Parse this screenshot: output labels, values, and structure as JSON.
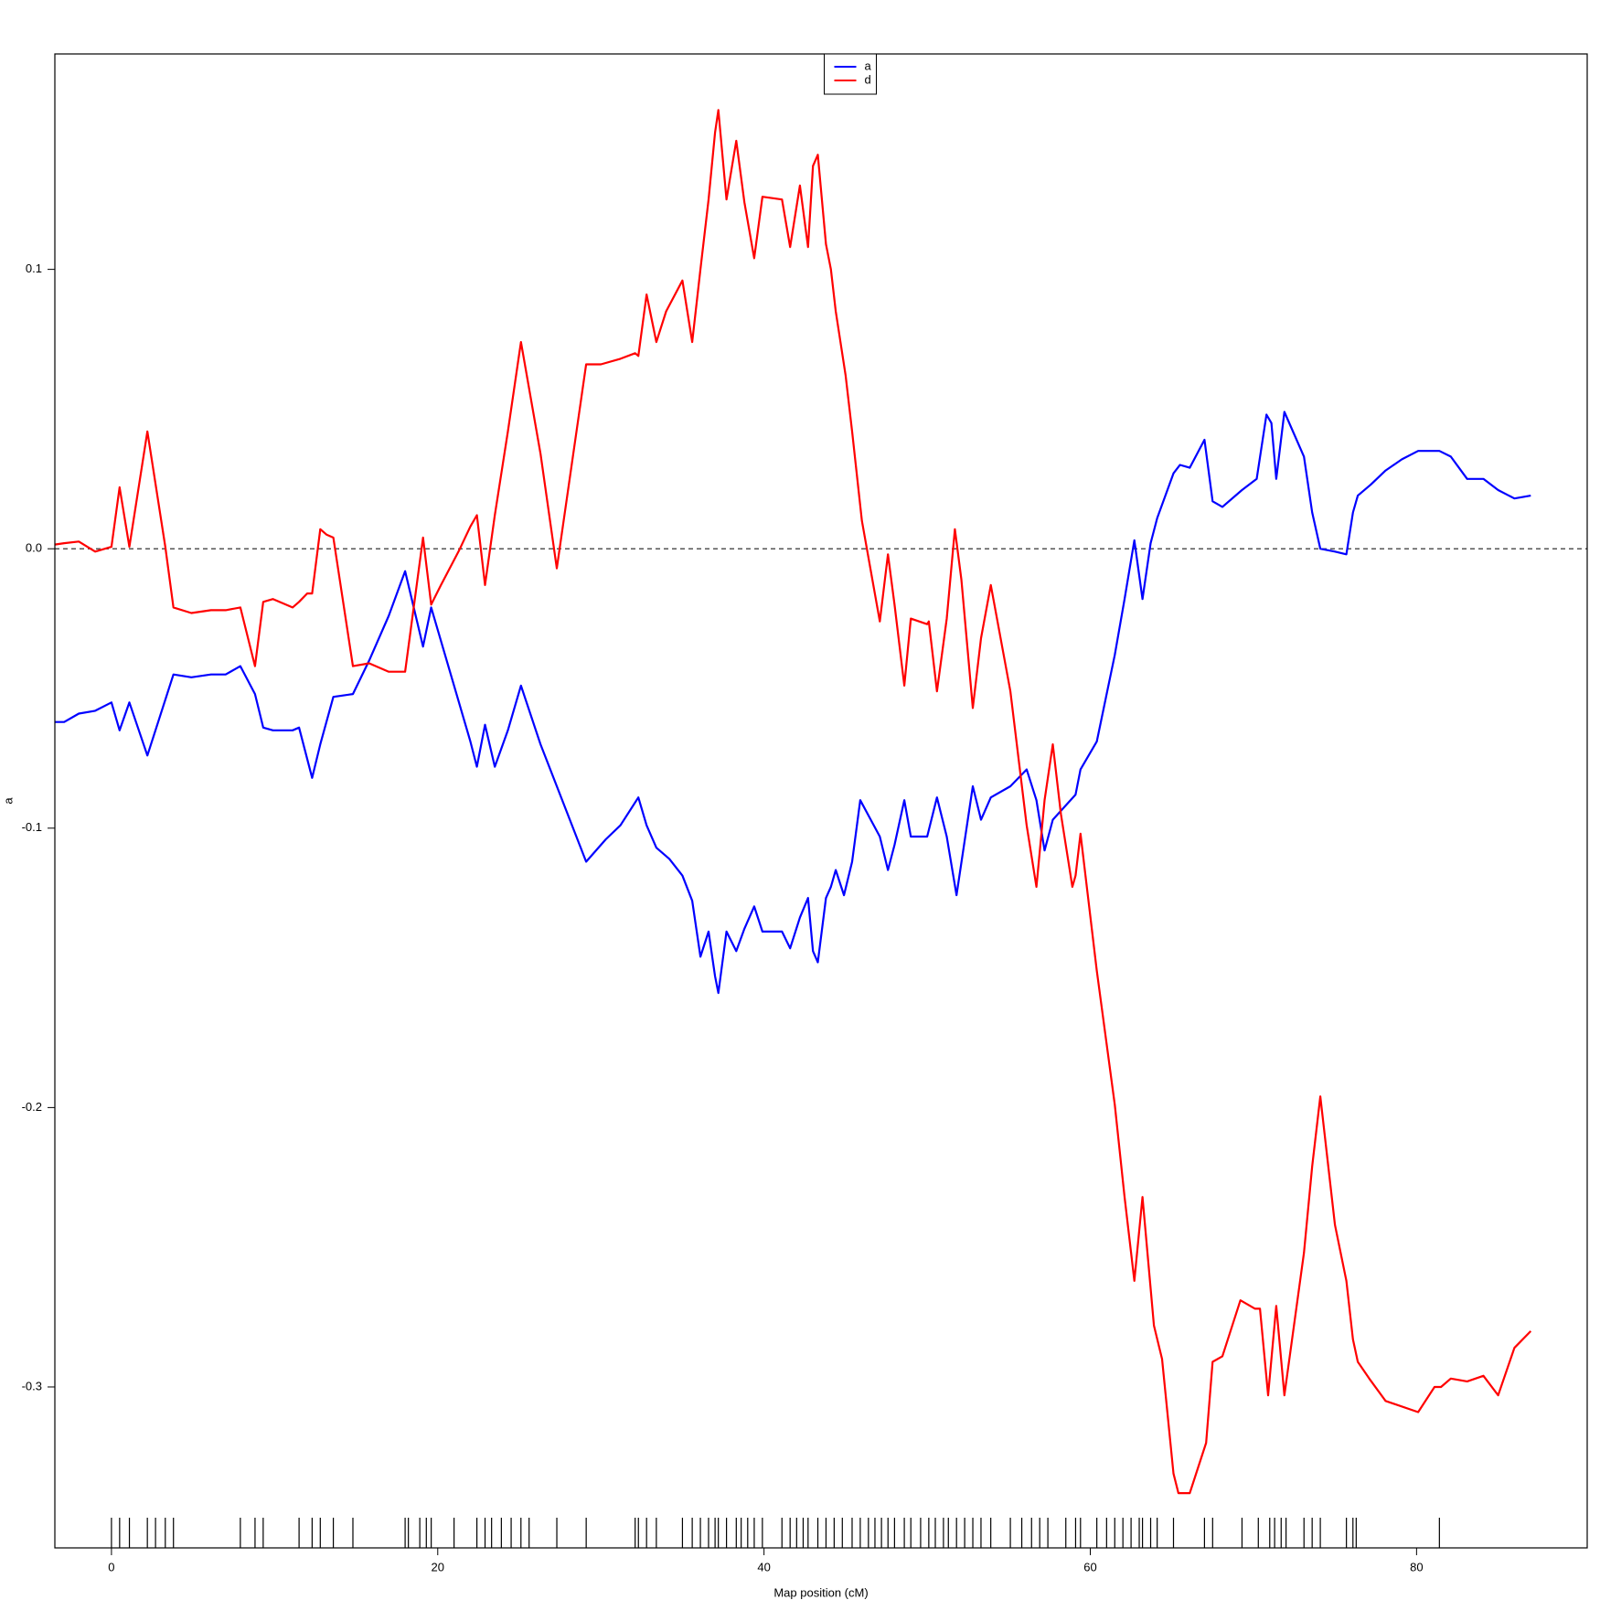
{
  "chart_data": {
    "type": "line",
    "x_label": "Map position (cM)",
    "y_label": "a",
    "xlim": [
      -3.47,
      90.46
    ],
    "ylim": [
      -0.3576,
      0.1771
    ],
    "xticks": [
      0,
      20,
      40,
      60,
      80
    ],
    "yticks": [
      -0.3,
      -0.2,
      -0.1,
      {
        "value": 0,
        "label": "0.0"
      },
      0.1
    ],
    "reference_line": 0,
    "legend": "top",
    "series": [
      {
        "name": "a",
        "color": "#0000ff",
        "x": [
          -3.47,
          -2.9,
          -2.0,
          -1.0,
          0,
          0.5,
          1.1,
          2.2,
          3.8,
          4.9,
          6.1,
          7.0,
          7.9,
          8.8,
          9.3,
          9.9,
          11.1,
          11.5,
          12.3,
          12.8,
          13.6,
          14.8,
          15.8,
          17.0,
          18.0,
          19.1,
          19.6,
          21.3,
          22.0,
          22.4,
          22.9,
          23.5,
          24.3,
          25.1,
          26.3,
          29.1,
          30.3,
          31.2,
          32.3,
          32.8,
          33.4,
          34.2,
          35.0,
          35.6,
          36.1,
          36.6,
          37.0,
          37.2,
          37.7,
          38.3,
          38.8,
          39.4,
          39.9,
          41.1,
          41.6,
          42.2,
          42.7,
          43.0,
          43.3,
          43.8,
          44.1,
          44.4,
          44.9,
          45.4,
          45.9,
          47.1,
          47.6,
          48.0,
          48.6,
          49.0,
          50.0,
          50.6,
          51.2,
          51.8,
          52.8,
          53.3,
          53.9,
          55.1,
          56.1,
          56.7,
          57.2,
          57.7,
          59.1,
          59.4,
          60.4,
          61.5,
          62.1,
          62.7,
          63.2,
          63.7,
          64.1,
          65.1,
          65.5,
          66.1,
          67.0,
          67.5,
          68.1,
          69.3,
          70.2,
          70.8,
          71.1,
          71.4,
          71.9,
          73.1,
          73.6,
          74.1,
          75.0,
          75.7,
          76.1,
          76.4,
          77.2,
          78.1,
          79.1,
          80.1,
          81.1,
          81.4,
          82.1,
          83.1,
          84.1,
          85.0,
          86.0,
          87.0
        ],
        "values": [
          -0.062,
          -0.062,
          -0.059,
          -0.058,
          -0.055,
          -0.065,
          -0.055,
          -0.074,
          -0.045,
          -0.046,
          -0.045,
          -0.045,
          -0.042,
          -0.052,
          -0.064,
          -0.065,
          -0.065,
          -0.064,
          -0.082,
          -0.07,
          -0.053,
          -0.052,
          -0.04,
          -0.024,
          -0.008,
          -0.035,
          -0.021,
          -0.055,
          -0.069,
          -0.078,
          -0.063,
          -0.078,
          -0.065,
          -0.049,
          -0.07,
          -0.112,
          -0.104,
          -0.099,
          -0.089,
          -0.099,
          -0.107,
          -0.111,
          -0.117,
          -0.126,
          -0.146,
          -0.137,
          -0.153,
          -0.159,
          -0.137,
          -0.144,
          -0.136,
          -0.128,
          -0.137,
          -0.137,
          -0.143,
          -0.132,
          -0.125,
          -0.144,
          -0.148,
          -0.125,
          -0.121,
          -0.115,
          -0.124,
          -0.112,
          -0.09,
          -0.103,
          -0.115,
          -0.106,
          -0.09,
          -0.103,
          -0.103,
          -0.089,
          -0.103,
          -0.124,
          -0.085,
          -0.097,
          -0.089,
          -0.085,
          -0.079,
          -0.09,
          -0.108,
          -0.097,
          -0.088,
          -0.079,
          -0.069,
          -0.038,
          -0.018,
          0.003,
          -0.018,
          0.002,
          0.011,
          0.027,
          0.03,
          0.029,
          0.039,
          0.017,
          0.015,
          0.021,
          0.025,
          0.048,
          0.045,
          0.025,
          0.049,
          0.033,
          0.013,
          0.0,
          -0.001,
          -0.002,
          0.013,
          0.019,
          0.023,
          0.028,
          0.032,
          0.035,
          0.035,
          0.035,
          0.033,
          0.025,
          0.025,
          0.021,
          0.018,
          0.019
        ]
      },
      {
        "name": "d",
        "color": "#ff0000",
        "x": [
          -3.47,
          -2.9,
          -2.0,
          -1.0,
          0,
          0.5,
          1.1,
          2.2,
          3.3,
          3.8,
          4.9,
          6.1,
          7.0,
          7.9,
          8.8,
          9.3,
          9.9,
          11.1,
          11.5,
          12.0,
          12.3,
          12.8,
          13.2,
          13.6,
          14.8,
          15.8,
          17.0,
          18.0,
          19.1,
          19.6,
          20.2,
          21.3,
          22.0,
          22.4,
          22.9,
          23.5,
          24.3,
          25.1,
          26.3,
          27.3,
          29.1,
          30.0,
          31.2,
          32.1,
          32.3,
          32.8,
          33.4,
          34.0,
          35.0,
          35.6,
          36.1,
          36.6,
          37.0,
          37.2,
          37.7,
          38.3,
          38.8,
          39.4,
          39.9,
          41.1,
          41.6,
          42.2,
          42.7,
          43.0,
          43.3,
          43.8,
          44.1,
          44.4,
          45.0,
          45.4,
          46.0,
          47.1,
          47.6,
          48.0,
          48.6,
          49.0,
          50.0,
          50.1,
          50.6,
          51.2,
          51.7,
          52.1,
          52.8,
          53.3,
          53.9,
          55.1,
          56.1,
          56.7,
          57.2,
          57.7,
          58.2,
          58.9,
          59.1,
          59.4,
          60.4,
          61.5,
          62.1,
          62.7,
          63.2,
          63.9,
          64.4,
          65.1,
          65.4,
          66.1,
          67.1,
          67.5,
          68.1,
          69.2,
          70.1,
          70.4,
          70.9,
          71.4,
          71.9,
          73.1,
          73.6,
          74.1,
          75.0,
          75.7,
          76.1,
          76.4,
          77.1,
          78.1,
          80.1,
          81.1,
          81.5,
          82.1,
          83.1,
          84.1,
          85.0,
          86.0,
          87.0
        ],
        "values": [
          0.0015,
          0.002,
          0.0026,
          -0.001,
          0.0007,
          0.022,
          0.0007,
          0.042,
          0.0007,
          -0.021,
          -0.023,
          -0.022,
          -0.022,
          -0.021,
          -0.042,
          -0.019,
          -0.018,
          -0.021,
          -0.019,
          -0.016,
          -0.016,
          0.007,
          0.005,
          0.004,
          -0.042,
          -0.041,
          -0.044,
          -0.044,
          0.004,
          -0.02,
          -0.013,
          -0.0007,
          0.008,
          0.012,
          -0.013,
          0.012,
          0.042,
          0.074,
          0.034,
          -0.007,
          0.066,
          0.066,
          0.068,
          0.07,
          0.069,
          0.091,
          0.074,
          0.085,
          0.096,
          0.074,
          0.1,
          0.125,
          0.149,
          0.157,
          0.125,
          0.146,
          0.124,
          0.104,
          0.126,
          0.125,
          0.108,
          0.13,
          0.108,
          0.137,
          0.141,
          0.109,
          0.1,
          0.085,
          0.062,
          0.042,
          0.01,
          -0.026,
          -0.002,
          -0.02,
          -0.049,
          -0.025,
          -0.027,
          -0.026,
          -0.051,
          -0.025,
          0.007,
          -0.011,
          -0.057,
          -0.032,
          -0.013,
          -0.051,
          -0.099,
          -0.121,
          -0.09,
          -0.07,
          -0.095,
          -0.121,
          -0.117,
          -0.102,
          -0.151,
          -0.199,
          -0.232,
          -0.262,
          -0.232,
          -0.278,
          -0.29,
          -0.331,
          -0.338,
          -0.338,
          -0.32,
          -0.291,
          -0.289,
          -0.269,
          -0.272,
          -0.272,
          -0.303,
          -0.271,
          -0.303,
          -0.252,
          -0.221,
          -0.196,
          -0.242,
          -0.262,
          -0.283,
          -0.291,
          -0.297,
          -0.305,
          -0.309,
          -0.3,
          -0.3,
          -0.297,
          -0.298,
          -0.296,
          -0.303,
          -0.286,
          -0.28
        ]
      }
    ],
    "markers": [
      0,
      0.5,
      1.1,
      2.2,
      2.7,
      3.3,
      3.8,
      7.9,
      8.8,
      9.3,
      11.5,
      12.3,
      12.8,
      13.6,
      14.8,
      18.0,
      18.2,
      18.9,
      19.3,
      19.6,
      21.0,
      22.4,
      22.9,
      23.3,
      23.9,
      24.5,
      25.1,
      25.6,
      27.3,
      29.1,
      32.1,
      32.3,
      32.8,
      33.4,
      35.0,
      35.6,
      36.1,
      36.6,
      37.0,
      37.2,
      37.7,
      38.3,
      38.6,
      39.0,
      39.4,
      39.9,
      41.1,
      41.6,
      42.0,
      42.4,
      42.7,
      43.3,
      43.8,
      44.3,
      44.8,
      45.4,
      45.9,
      46.4,
      46.8,
      47.2,
      47.6,
      48.0,
      48.6,
      49.0,
      49.6,
      50.1,
      50.5,
      51.0,
      51.3,
      51.8,
      52.3,
      52.8,
      53.3,
      53.9,
      55.1,
      55.8,
      56.4,
      56.9,
      57.4,
      58.5,
      59.1,
      59.4,
      60.4,
      61.0,
      61.5,
      62.0,
      62.5,
      63.0,
      63.2,
      63.7,
      64.1,
      65.1,
      67.0,
      67.5,
      69.3,
      70.3,
      71.0,
      71.3,
      71.7,
      72.0,
      73.1,
      73.6,
      74.1,
      75.7,
      76.1,
      76.3,
      81.4
    ]
  }
}
